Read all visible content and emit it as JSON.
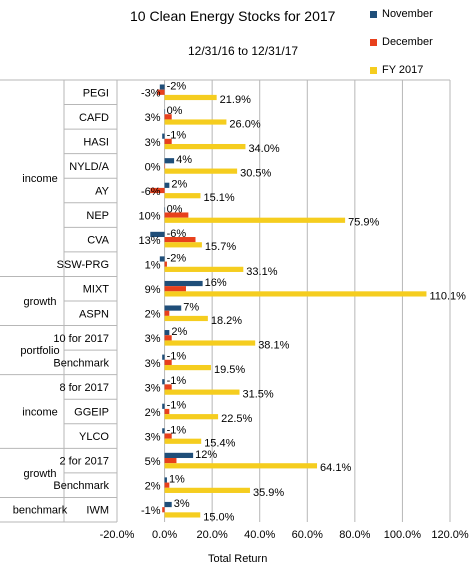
{
  "chart_data": {
    "type": "bar",
    "orientation": "horizontal",
    "title": "10 Clean Energy Stocks for 2017",
    "subtitle": "12/31/16 to 12/31/17",
    "xlabel": "Total Return",
    "xlim": [
      -20,
      120
    ],
    "x_ticks": [
      "-20.0%",
      "0.0%",
      "20.0%",
      "40.0%",
      "60.0%",
      "80.0%",
      "100.0%",
      "120.0%"
    ],
    "legend_position": "top-right",
    "groups": [
      {
        "label": "income",
        "start": 0,
        "end": 7
      },
      {
        "label": "growth",
        "start": 8,
        "end": 9
      },
      {
        "label": "portfolio",
        "start": 10,
        "end": 11
      },
      {
        "label": "income",
        "start": 12,
        "end": 14
      },
      {
        "label": "growth",
        "start": 15,
        "end": 16
      },
      {
        "label": "benchmark",
        "start": 17,
        "end": 17
      }
    ],
    "categories": [
      "PEGI",
      "CAFD",
      "HASI",
      "NYLD/A",
      "AY",
      "NEP",
      "CVA",
      "SSW-PRG",
      "MIXT",
      "ASPN",
      "10 for 2017",
      "Benchmark",
      "8 for 2017",
      "GGEIP",
      "YLCO",
      "2 for 2017",
      "Benchmark",
      "IWM"
    ],
    "series": [
      {
        "name": "November",
        "color": "#1f4e79",
        "values": [
          -2,
          0,
          -1,
          4,
          2,
          0,
          -6,
          -2,
          16,
          7,
          2,
          -1,
          -1,
          -1,
          -1,
          12,
          1,
          3
        ],
        "labels": [
          "-2%",
          "0%",
          "-1%",
          "4%",
          "2%",
          "0%",
          "-6%",
          "-2%",
          "16%",
          "7%",
          "2%",
          "-1%",
          "-1%",
          "-1%",
          "-1%",
          "12%",
          "1%",
          "3%"
        ]
      },
      {
        "name": "December",
        "color": "#e8401c",
        "values": [
          -3,
          3,
          3,
          0,
          -6,
          10,
          13,
          1,
          9,
          2,
          3,
          3,
          3,
          2,
          3,
          5,
          2,
          -1
        ],
        "labels": [
          "-3%",
          "3%",
          "3%",
          "0%",
          "-6%",
          "10%",
          "13%",
          "1%",
          "9%",
          "2%",
          "3%",
          "3%",
          "3%",
          "2%",
          "3%",
          "5%",
          "2%",
          "-1%"
        ]
      },
      {
        "name": "FY 2017",
        "color": "#f5cd1f",
        "values": [
          21.9,
          26.0,
          34.0,
          30.5,
          15.1,
          75.9,
          15.7,
          33.1,
          110.1,
          18.2,
          38.1,
          19.5,
          31.5,
          22.5,
          15.4,
          64.1,
          35.9,
          15.0
        ],
        "labels": [
          "21.9%",
          "26.0%",
          "34.0%",
          "30.5%",
          "15.1%",
          "75.9%",
          "15.7%",
          "33.1%",
          "110.1%",
          "18.2%",
          "38.1%",
          "19.5%",
          "31.5%",
          "22.5%",
          "15.4%",
          "64.1%",
          "35.9%",
          "15.0%"
        ]
      }
    ]
  }
}
